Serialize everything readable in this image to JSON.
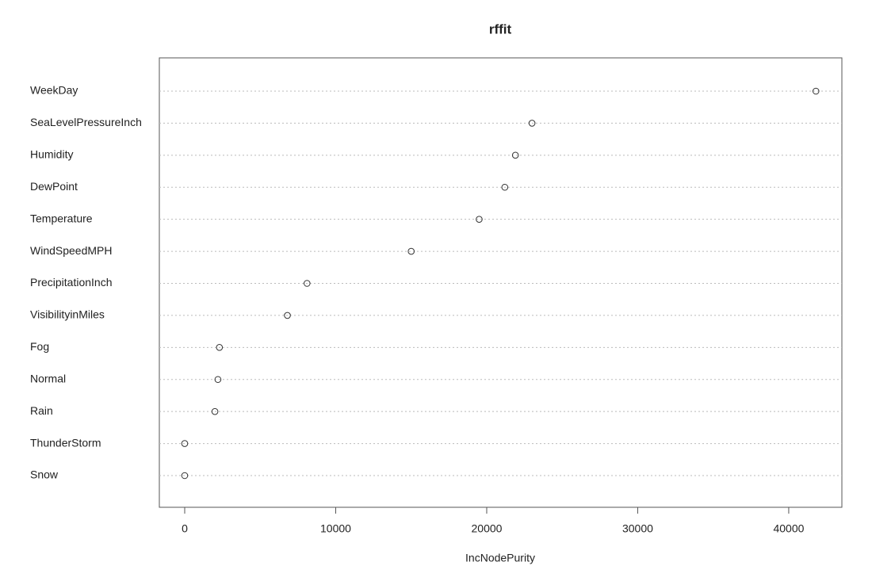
{
  "chart_data": {
    "type": "dot",
    "title": "rffit",
    "x_label": "IncNodePurity",
    "categories": [
      "WeekDay",
      "SeaLevelPressureInch",
      "Humidity",
      "DewPoint",
      "Temperature",
      "WindSpeedMPH",
      "PrecipitationInch",
      "VisibilityinMiles",
      "Fog",
      "Normal",
      "Rain",
      "ThunderStorm",
      "Snow"
    ],
    "values": [
      41800,
      23000,
      21900,
      21200,
      19500,
      15000,
      8100,
      6800,
      2300,
      2200,
      2000,
      0,
      0
    ],
    "color": "#333333",
    "xlim": [
      -1680,
      43520
    ],
    "xticks": [
      0,
      10000,
      20000,
      30000,
      40000
    ],
    "grid": true
  }
}
